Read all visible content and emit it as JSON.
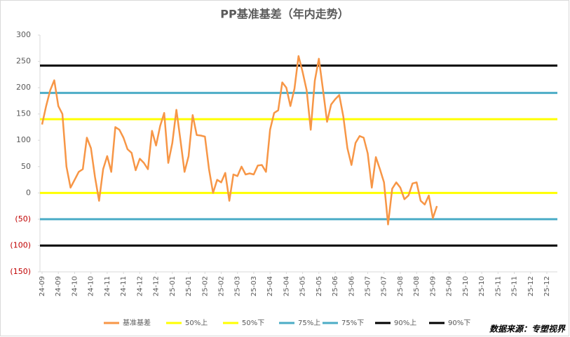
{
  "chart_data": {
    "type": "line",
    "title": "PP基准基差（年内走势）",
    "source": "数据来源：专塑视界",
    "categories": [
      "24-09",
      null,
      null,
      null,
      "24-09",
      null,
      null,
      null,
      "24-10",
      null,
      null,
      null,
      "24-10",
      null,
      null,
      null,
      "24-11",
      null,
      null,
      null,
      "24-11",
      null,
      null,
      null,
      "24-12",
      null,
      null,
      null,
      "24-12",
      null,
      null,
      null,
      "25-01",
      null,
      null,
      null,
      "25-01",
      null,
      null,
      null,
      "25-02",
      null,
      null,
      null,
      "25-02",
      null,
      null,
      null,
      "25-03",
      null,
      null,
      null,
      "25-03",
      null,
      null,
      null,
      "25-04",
      null,
      null,
      null,
      "25-04",
      null,
      null,
      null,
      "25-05",
      null,
      null,
      null,
      "25-05",
      null,
      null,
      null,
      "25-06",
      null,
      null,
      null,
      "25-06",
      null,
      null,
      null,
      "25-07",
      null,
      null,
      null,
      "25-07",
      null,
      null,
      null,
      "25-08",
      null,
      null,
      null,
      "25-08",
      null,
      null,
      null,
      "25-09",
      null,
      null,
      null,
      "25-09",
      null,
      null,
      null,
      "25-10",
      null,
      null,
      null,
      "25-10",
      null,
      null,
      null,
      "25-11",
      null,
      null,
      null,
      "25-11",
      null,
      null,
      null,
      "25-12",
      null,
      null,
      null,
      "25-12",
      null,
      null,
      null
    ],
    "series": [
      {
        "name": "基准基差",
        "color": "#f79646",
        "values": [
          130,
          165,
          195,
          214,
          165,
          150,
          50,
          10,
          25,
          40,
          45,
          105,
          85,
          30,
          -15,
          45,
          70,
          40,
          125,
          120,
          105,
          83,
          76,
          43,
          65,
          57,
          45,
          118,
          90,
          127,
          152,
          57,
          95,
          158,
          100,
          40,
          70,
          148,
          110,
          109,
          107,
          45,
          0,
          25,
          20,
          38,
          -15,
          35,
          32,
          50,
          35,
          37,
          35,
          52,
          53,
          40,
          120,
          152,
          157,
          210,
          200,
          165,
          198,
          260,
          230,
          195,
          120,
          213,
          255,
          197,
          135,
          168,
          178,
          186,
          145,
          85,
          53,
          95,
          108,
          105,
          75,
          10,
          68,
          45,
          20,
          -60,
          8,
          20,
          10,
          -12,
          -5,
          18,
          20,
          -15,
          -22,
          -5,
          -48,
          -25,
          null,
          null,
          null,
          null,
          null,
          null,
          null,
          null,
          null,
          null,
          null,
          null,
          null,
          null,
          null,
          null,
          null,
          null,
          null,
          null,
          null,
          null,
          null,
          null,
          null,
          null,
          null,
          null,
          null,
          null
        ]
      }
    ],
    "reference_lines": [
      {
        "name": "50%上",
        "color": "#ffff00",
        "value": 140
      },
      {
        "name": "50%下",
        "color": "#ffff00",
        "value": 0
      },
      {
        "name": "75%上",
        "color": "#4bacc6",
        "value": 190
      },
      {
        "name": "75%下",
        "color": "#4bacc6",
        "value": -50
      },
      {
        "name": "90%上",
        "color": "#000000",
        "value": 242
      },
      {
        "name": "90%下",
        "color": "#000000",
        "value": -100
      }
    ],
    "ylim": [
      -150,
      300
    ],
    "yticks": [
      {
        "value": -150,
        "label": "(150)"
      },
      {
        "value": -100,
        "label": "(100)"
      },
      {
        "value": -50,
        "label": "(50)"
      },
      0,
      50,
      100,
      150,
      200,
      250,
      300
    ],
    "negative_tick_color": "#c00000",
    "legend": "bottom"
  }
}
